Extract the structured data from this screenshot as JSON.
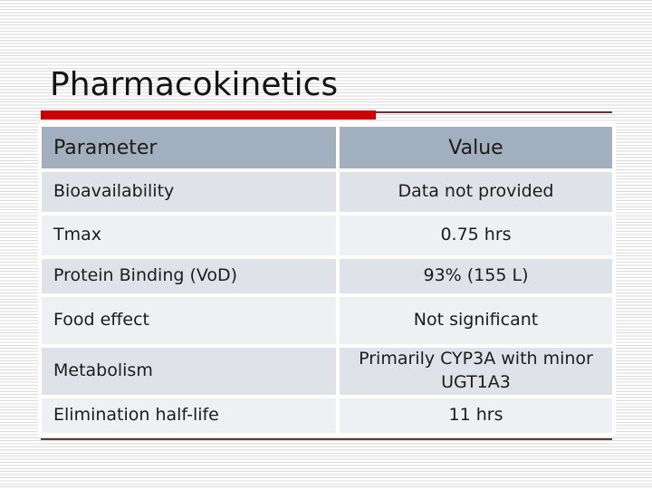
{
  "slide": {
    "title": "Pharmacokinetics",
    "accent_colors": {
      "thick_bar_red": "#cc0000",
      "thin_rule_maroon": "#663733",
      "header_blue_gray": "#a1afbe",
      "row_dark": "#dfe3e9",
      "row_light": "#eef0f4"
    }
  },
  "table": {
    "headers": [
      "Parameter",
      "Value"
    ],
    "rows": [
      {
        "parameter": "Bioavailability",
        "value": "Data not provided"
      },
      {
        "parameter": "Tmax",
        "value": "0.75 hrs"
      },
      {
        "parameter": "Protein Binding (VoD)",
        "value": "93% (155 L)"
      },
      {
        "parameter": "Food effect",
        "value": "Not significant"
      },
      {
        "parameter": "Metabolism",
        "value": "Primarily CYP3A with minor UGT1A3"
      },
      {
        "parameter": "Elimination half-life",
        "value": "11 hrs"
      }
    ]
  }
}
